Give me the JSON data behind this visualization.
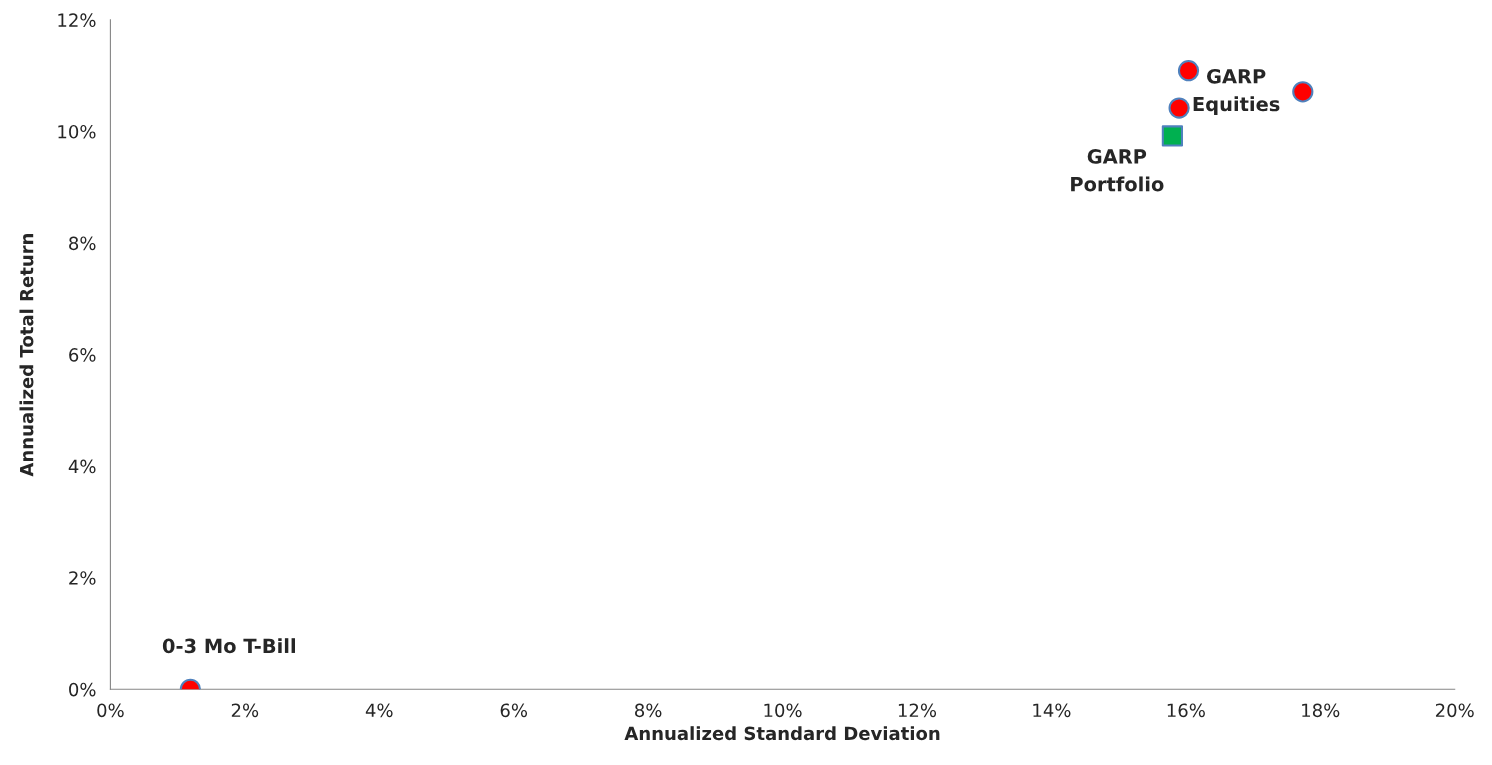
{
  "chart_data": {
    "type": "scatter",
    "xlabel": "Annualized Standard Deviation",
    "ylabel": "Annualized Total Return",
    "series": [
      {
        "color": "#ff0000",
        "marker": "circle",
        "x": [
          16.04,
          15.9,
          17.74,
          1.19
        ],
        "values": [
          11.09,
          10.42,
          10.71,
          0
        ]
      },
      {
        "color": "#00b050",
        "marker": "square",
        "x": [
          15.8
        ],
        "values": [
          9.92
        ]
      }
    ],
    "annotations": [
      {
        "text": "GARP\nEquities",
        "x": 17.74,
        "y": 10.71
      },
      {
        "text": "GARP\nPortfolio",
        "x": 15.8,
        "y": 9.92
      },
      {
        "text": "0-3 Mo T-Bill",
        "x": 1.19,
        "y": 0
      }
    ],
    "xlim": [
      0,
      20
    ],
    "ylim": [
      0,
      12
    ],
    "xticks": [
      {
        "value": 0,
        "label": "0%"
      },
      {
        "value": 2,
        "label": "2%"
      },
      {
        "value": 4,
        "label": "4%"
      },
      {
        "value": 6,
        "label": "6%"
      },
      {
        "value": 8,
        "label": "8%"
      },
      {
        "value": 10,
        "label": "10%"
      },
      {
        "value": 12,
        "label": "12%"
      },
      {
        "value": 14,
        "label": "14%"
      },
      {
        "value": 16,
        "label": "16%"
      },
      {
        "value": 18,
        "label": "18%"
      },
      {
        "value": 20,
        "label": "20%"
      }
    ],
    "yticks": [
      {
        "value": 0,
        "label": "0%"
      },
      {
        "value": 2,
        "label": "2%"
      },
      {
        "value": 4,
        "label": "4%"
      },
      {
        "value": 6,
        "label": "6%"
      },
      {
        "value": 8,
        "label": "8%"
      },
      {
        "value": 10,
        "label": "10%"
      },
      {
        "value": 12,
        "label": "12%"
      }
    ],
    "grid": false,
    "legend": false
  }
}
